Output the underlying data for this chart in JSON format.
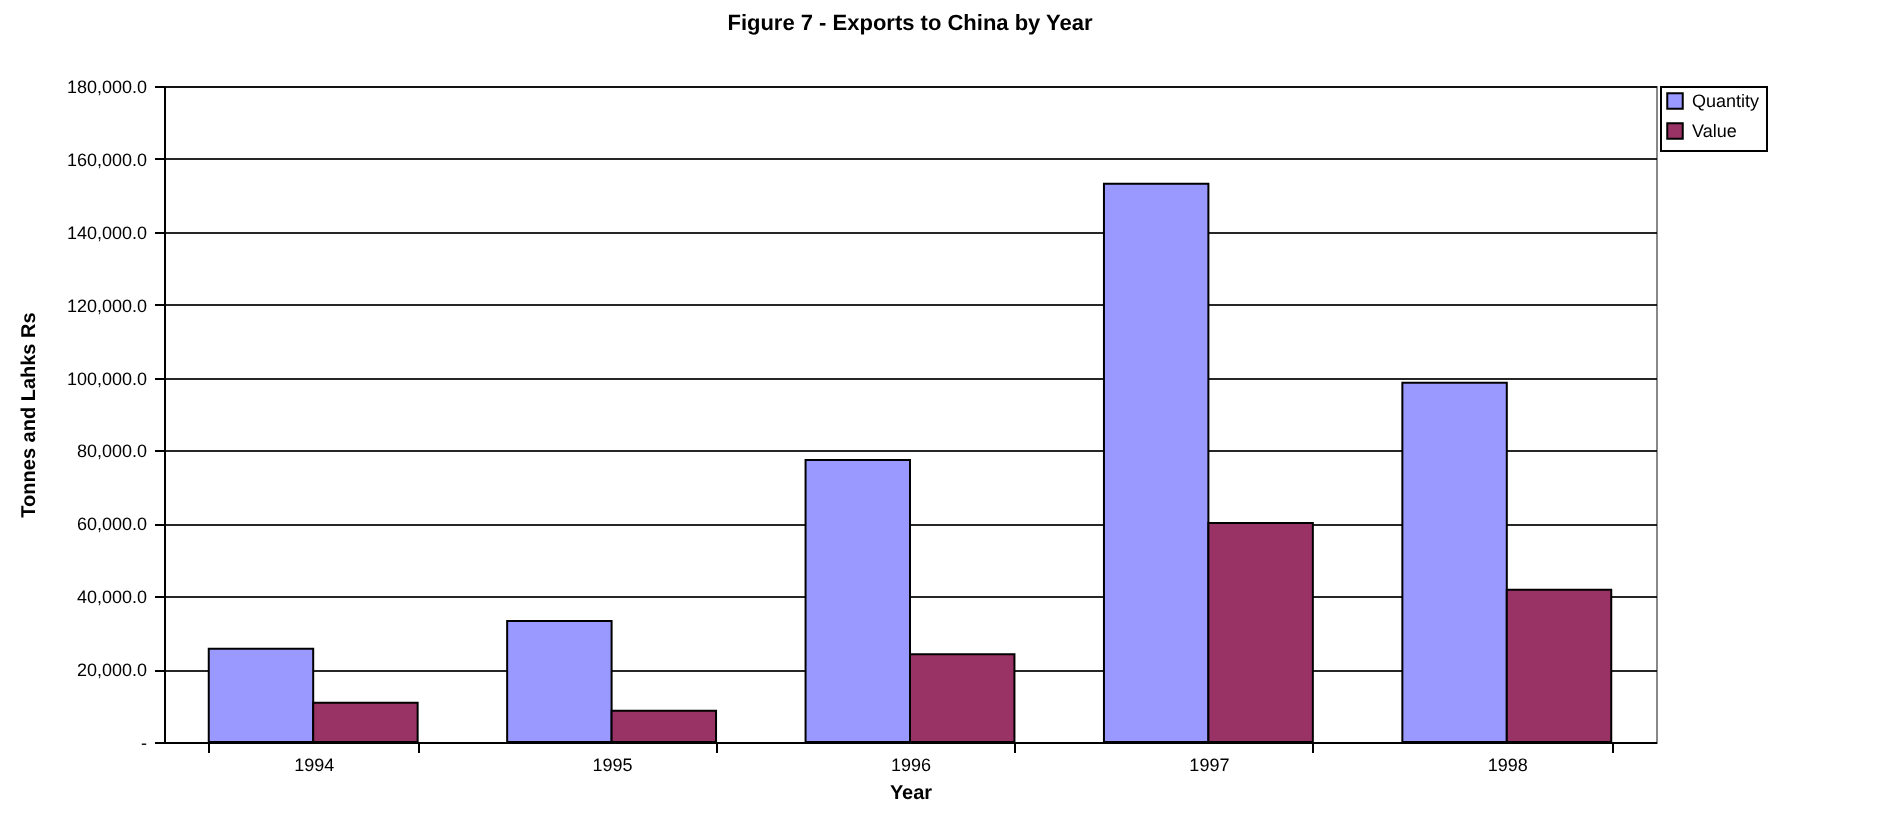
{
  "chart_data": {
    "type": "bar",
    "title": "Figure 7 - Exports to China by Year",
    "xlabel": "Year",
    "ylabel": "Tonnes and Lahks Rs",
    "categories": [
      "1994",
      "1995",
      "1996",
      "1997",
      "1998"
    ],
    "series": [
      {
        "name": "Quantity",
        "color": "#9999ff",
        "values": [
          25600,
          33200,
          77400,
          153200,
          98600
        ]
      },
      {
        "name": "Value",
        "color": "#993366",
        "values": [
          10800,
          8600,
          24100,
          60100,
          41800
        ]
      }
    ],
    "ylim": [
      0,
      180000
    ],
    "yticks": [
      {
        "value": 0,
        "label": "-"
      },
      {
        "value": 20000,
        "label": "20,000.0"
      },
      {
        "value": 40000,
        "label": "40,000.0"
      },
      {
        "value": 60000,
        "label": "60,000.0"
      },
      {
        "value": 80000,
        "label": "80,000.0"
      },
      {
        "value": 100000,
        "label": "100,000.0"
      },
      {
        "value": 120000,
        "label": "120,000.0"
      },
      {
        "value": 140000,
        "label": "140,000.0"
      },
      {
        "value": 160000,
        "label": "160,000.0"
      },
      {
        "value": 180000,
        "label": "180,000.0"
      }
    ],
    "grid": "y",
    "legend": "right"
  }
}
